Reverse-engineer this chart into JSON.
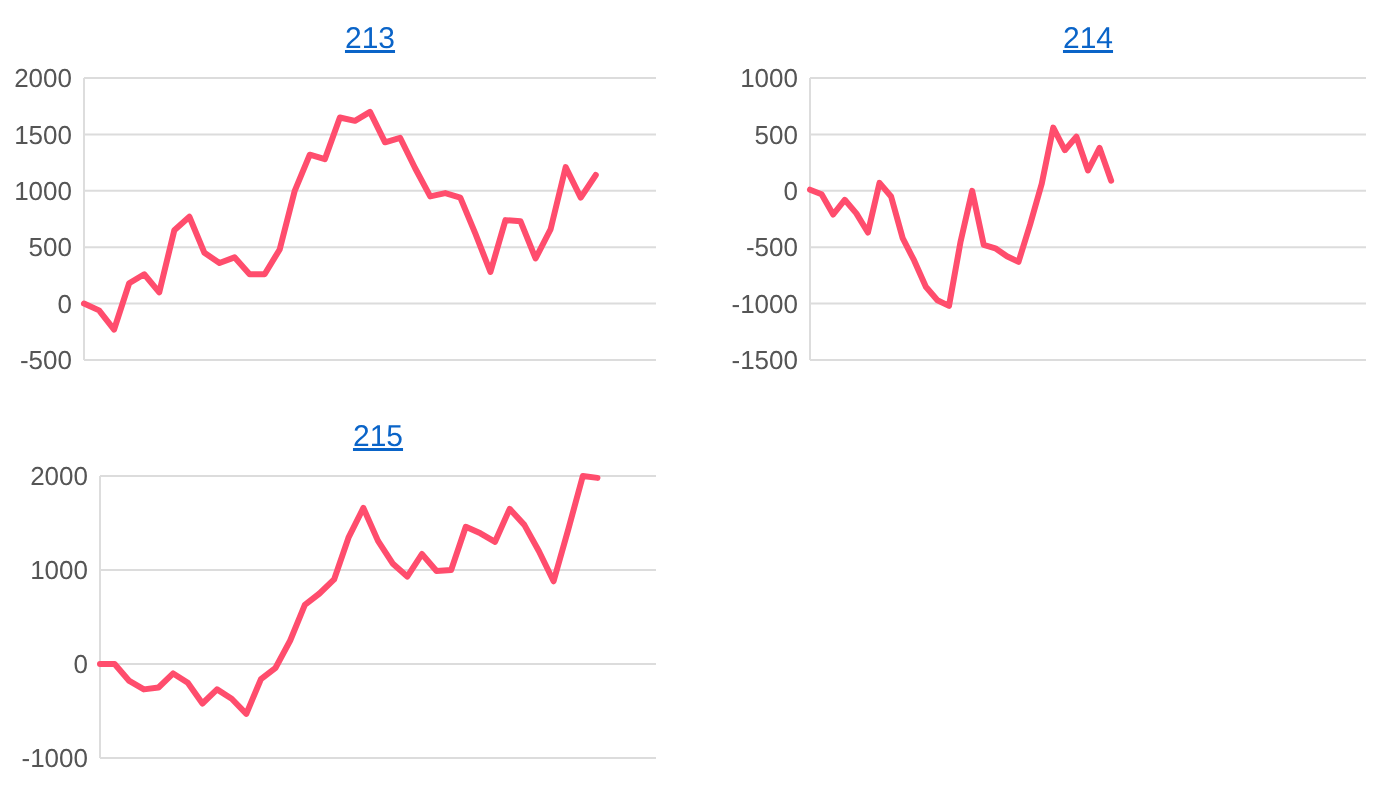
{
  "chart_data": [
    {
      "type": "line",
      "title": "213",
      "categories": [
        null,
        null,
        null,
        null,
        null,
        null,
        null,
        null,
        null,
        null,
        null,
        null,
        null,
        null,
        null,
        null,
        null,
        null,
        null,
        null,
        null,
        null,
        null,
        null,
        null,
        null,
        null,
        null,
        null,
        null,
        null,
        null,
        null,
        null,
        null,
        null,
        null,
        null,
        null
      ],
      "series": [
        {
          "color": "#ff4d6d",
          "values": [
            0,
            -60,
            -230,
            180,
            260,
            100,
            650,
            770,
            450,
            360,
            410,
            260,
            260,
            480,
            1000,
            1320,
            1280,
            1650,
            1620,
            1700,
            1430,
            1470,
            1200,
            950,
            980,
            940,
            620,
            280,
            740,
            730,
            400,
            660,
            1210,
            940,
            1140,
            null,
            null,
            null,
            null
          ]
        }
      ],
      "ylim": [
        -500,
        2000
      ],
      "yticks": [
        -500,
        0,
        500,
        1000,
        1500,
        2000
      ],
      "grid": "y",
      "tick_labels": "y",
      "marker": "none",
      "line_style": "solid"
    },
    {
      "type": "line",
      "title": "214",
      "categories": [
        null,
        null,
        null,
        null,
        null,
        null,
        null,
        null,
        null,
        null,
        null,
        null,
        null,
        null,
        null,
        null,
        null,
        null,
        null,
        null,
        null,
        null,
        null,
        null,
        null,
        null,
        null,
        null,
        null,
        null,
        null,
        null,
        null,
        null,
        null,
        null,
        null,
        null,
        null,
        null,
        null,
        null,
        null,
        null,
        null,
        null,
        null,
        null,
        null
      ],
      "series": [
        {
          "color": "#ff4d6d",
          "values": [
            10,
            -30,
            -210,
            -80,
            -200,
            -370,
            70,
            -50,
            -420,
            -620,
            -850,
            -970,
            -1020,
            -450,
            0,
            -480,
            -510,
            -580,
            -630,
            -300,
            60,
            560,
            360,
            480,
            180,
            380,
            90,
            null,
            null,
            null,
            null,
            null,
            null,
            null,
            null,
            null,
            null,
            null,
            null,
            null,
            null,
            null,
            null,
            null,
            null,
            null,
            null,
            null,
            null
          ]
        }
      ],
      "ylim": [
        -1500,
        1000
      ],
      "yticks": [
        -1500,
        -1000,
        -500,
        0,
        500,
        1000
      ],
      "grid": "y",
      "tick_labels": "y",
      "marker": "none",
      "line_style": "solid"
    },
    {
      "type": "line",
      "title": "215",
      "categories": [
        null,
        null,
        null,
        null,
        null,
        null,
        null,
        null,
        null,
        null,
        null,
        null,
        null,
        null,
        null,
        null,
        null,
        null,
        null,
        null,
        null,
        null,
        null,
        null,
        null,
        null,
        null,
        null,
        null,
        null,
        null,
        null,
        null,
        null,
        null,
        null,
        null,
        null,
        null
      ],
      "series": [
        {
          "color": "#ff4d6d",
          "values": [
            0,
            0,
            -180,
            -270,
            -250,
            -100,
            -200,
            -420,
            -270,
            -370,
            -530,
            -160,
            -40,
            250,
            630,
            750,
            900,
            1350,
            1660,
            1310,
            1070,
            930,
            1170,
            990,
            1000,
            1460,
            1390,
            1300,
            1650,
            1480,
            1200,
            880,
            1430,
            2000,
            1980,
            null,
            null,
            null,
            null
          ]
        }
      ],
      "ylim": [
        -1000,
        2000
      ],
      "yticks": [
        -1000,
        0,
        1000,
        2000
      ],
      "grid": "y",
      "tick_labels": "y",
      "marker": "none",
      "line_style": "solid"
    }
  ]
}
